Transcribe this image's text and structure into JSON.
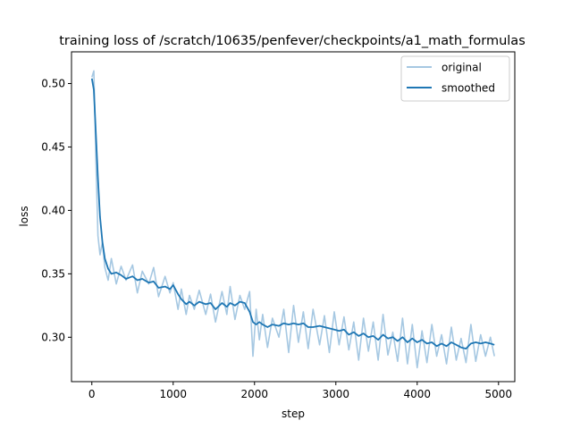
{
  "chart_data": {
    "type": "line",
    "title": "training loss of /scratch/10635/penfever/checkpoints/a1_math_formulas",
    "xlabel": "step",
    "ylabel": "loss",
    "xlim": [
      -250,
      5200
    ],
    "ylim": [
      0.265,
      0.525
    ],
    "xticks": [
      0,
      1000,
      2000,
      3000,
      4000,
      5000
    ],
    "xtick_labels": [
      "0",
      "1000",
      "2000",
      "3000",
      "4000",
      "5000"
    ],
    "yticks": [
      0.3,
      0.35,
      0.4,
      0.45,
      0.5
    ],
    "ytick_labels": [
      "0.30",
      "0.35",
      "0.40",
      "0.45",
      "0.50"
    ],
    "grid": false,
    "legend_position": "top-right",
    "series": [
      {
        "name": "original",
        "color": "#a6c8e2",
        "x": [
          0,
          25,
          50,
          75,
          100,
          130,
          160,
          200,
          240,
          300,
          360,
          420,
          500,
          560,
          620,
          700,
          760,
          820,
          900,
          960,
          1000,
          1060,
          1100,
          1160,
          1200,
          1260,
          1320,
          1400,
          1460,
          1520,
          1600,
          1660,
          1700,
          1760,
          1820,
          1880,
          1940,
          1980,
          2020,
          2060,
          2100,
          2160,
          2220,
          2300,
          2360,
          2420,
          2480,
          2540,
          2600,
          2660,
          2720,
          2800,
          2860,
          2920,
          2980,
          3040,
          3100,
          3160,
          3220,
          3280,
          3340,
          3400,
          3460,
          3520,
          3580,
          3640,
          3700,
          3760,
          3820,
          3880,
          3940,
          4000,
          4060,
          4120,
          4180,
          4240,
          4300,
          4360,
          4420,
          4480,
          4540,
          4600,
          4660,
          4720,
          4780,
          4840,
          4900,
          4950
        ],
        "values": [
          0.505,
          0.51,
          0.44,
          0.38,
          0.365,
          0.375,
          0.355,
          0.345,
          0.362,
          0.342,
          0.356,
          0.345,
          0.357,
          0.335,
          0.352,
          0.342,
          0.355,
          0.332,
          0.348,
          0.335,
          0.343,
          0.322,
          0.338,
          0.318,
          0.333,
          0.322,
          0.337,
          0.318,
          0.334,
          0.312,
          0.336,
          0.318,
          0.34,
          0.314,
          0.333,
          0.322,
          0.336,
          0.285,
          0.322,
          0.298,
          0.318,
          0.292,
          0.315,
          0.3,
          0.322,
          0.288,
          0.325,
          0.296,
          0.32,
          0.291,
          0.322,
          0.294,
          0.317,
          0.288,
          0.32,
          0.294,
          0.316,
          0.29,
          0.312,
          0.282,
          0.315,
          0.289,
          0.312,
          0.282,
          0.318,
          0.286,
          0.304,
          0.281,
          0.315,
          0.279,
          0.31,
          0.276,
          0.305,
          0.28,
          0.31,
          0.285,
          0.302,
          0.279,
          0.308,
          0.282,
          0.299,
          0.28,
          0.31,
          0.281,
          0.302,
          0.285,
          0.3,
          0.285
        ]
      },
      {
        "name": "smoothed",
        "color": "#1f77b4",
        "x": [
          0,
          25,
          50,
          75,
          100,
          130,
          160,
          200,
          240,
          300,
          360,
          420,
          500,
          560,
          620,
          700,
          760,
          820,
          900,
          960,
          1000,
          1060,
          1100,
          1160,
          1200,
          1260,
          1320,
          1400,
          1460,
          1520,
          1600,
          1660,
          1700,
          1760,
          1820,
          1880,
          1940,
          1980,
          2020,
          2060,
          2100,
          2160,
          2220,
          2300,
          2360,
          2420,
          2480,
          2540,
          2600,
          2660,
          2720,
          2800,
          2860,
          2920,
          2980,
          3040,
          3100,
          3160,
          3220,
          3280,
          3340,
          3400,
          3460,
          3520,
          3580,
          3640,
          3700,
          3760,
          3820,
          3880,
          3940,
          4000,
          4060,
          4120,
          4180,
          4240,
          4300,
          4360,
          4420,
          4480,
          4540,
          4600,
          4660,
          4720,
          4780,
          4840,
          4900,
          4950
        ],
        "values": [
          0.504,
          0.495,
          0.46,
          0.425,
          0.395,
          0.375,
          0.362,
          0.354,
          0.35,
          0.351,
          0.349,
          0.346,
          0.348,
          0.345,
          0.346,
          0.343,
          0.344,
          0.339,
          0.34,
          0.338,
          0.341,
          0.334,
          0.33,
          0.326,
          0.328,
          0.325,
          0.328,
          0.326,
          0.327,
          0.322,
          0.327,
          0.324,
          0.327,
          0.325,
          0.328,
          0.327,
          0.32,
          0.312,
          0.31,
          0.312,
          0.31,
          0.308,
          0.31,
          0.309,
          0.311,
          0.31,
          0.311,
          0.31,
          0.311,
          0.308,
          0.308,
          0.309,
          0.308,
          0.307,
          0.306,
          0.305,
          0.306,
          0.302,
          0.304,
          0.301,
          0.303,
          0.3,
          0.301,
          0.298,
          0.302,
          0.299,
          0.3,
          0.297,
          0.3,
          0.296,
          0.299,
          0.296,
          0.298,
          0.295,
          0.296,
          0.293,
          0.295,
          0.293,
          0.296,
          0.294,
          0.292,
          0.291,
          0.295,
          0.296,
          0.295,
          0.296,
          0.295,
          0.294
        ]
      }
    ]
  }
}
